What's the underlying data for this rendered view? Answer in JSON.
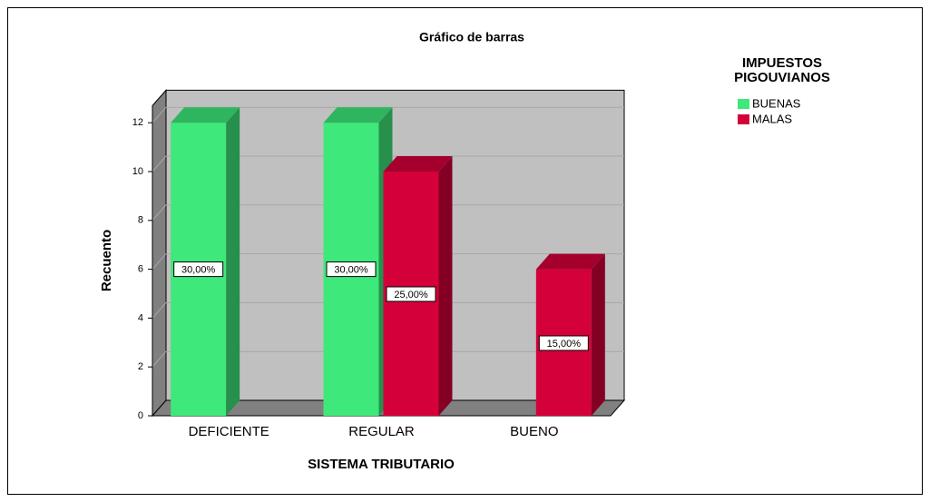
{
  "chart_data": {
    "type": "bar3d",
    "title": "Gráfico de barras",
    "x_label": "SISTEMA TRIBUTARIO",
    "y_label": "Recuento",
    "legend_title": "IMPUESTOS PIGOUVIANOS",
    "categories": [
      "DEFICIENTE",
      "REGULAR",
      "BUENO"
    ],
    "series": [
      {
        "name": "BUENAS",
        "color": "#3ee87a",
        "values": [
          12,
          12,
          null
        ],
        "percent_values": [
          30,
          30,
          null
        ],
        "percent_labels": [
          "30,00%",
          "30,00%",
          null
        ]
      },
      {
        "name": "MALAS",
        "color": "#d4003a",
        "values": [
          null,
          10,
          6
        ],
        "percent_values": [
          null,
          25,
          15
        ],
        "percent_labels": [
          null,
          "25,00%",
          "15,00%"
        ]
      }
    ],
    "ylim": [
      0,
      12.7
    ],
    "yticks": [
      0,
      2,
      4,
      6,
      8,
      10,
      12
    ],
    "grid": true
  }
}
